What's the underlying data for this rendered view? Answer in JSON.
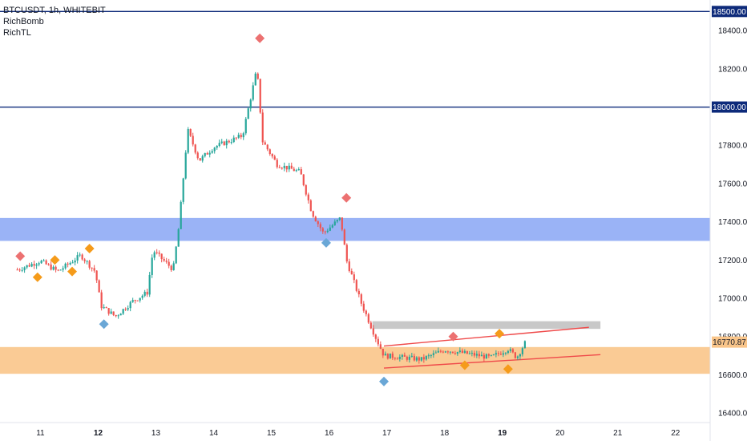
{
  "chart_data": {
    "type": "candlestick",
    "title": "BTCUSDT, 1h, WHITEBIT",
    "indicators": [
      "RichBomb",
      "RichTL"
    ],
    "x_axis": {
      "labels": [
        "11",
        "12",
        "13",
        "14",
        "15",
        "16",
        "17",
        "18",
        "19",
        "20",
        "21",
        "22"
      ],
      "bold_labels": [
        "12",
        "19"
      ]
    },
    "y_axis": {
      "range": [
        16350,
        18560
      ],
      "ticks": [
        "18400.00",
        "18200.00",
        "18000.00",
        "17800.00",
        "17600.00",
        "17400.00",
        "17200.00",
        "17000.00",
        "16800.00",
        "16600.00",
        "16400.00"
      ],
      "tick_values": [
        18400,
        18200,
        18000,
        17800,
        17600,
        17400,
        17200,
        17000,
        16800,
        16600,
        16400
      ]
    },
    "current_price": {
      "label": "16770.87",
      "value": 16770.87
    },
    "horizontal_lines": [
      {
        "value": 18500,
        "label": "18500.00",
        "color": "#0d2a7a"
      },
      {
        "value": 18000,
        "label": "18000.00",
        "color": "#0d2a7a"
      }
    ],
    "zones": [
      {
        "from": 17300,
        "to": 17420,
        "color": "#8fabf5"
      },
      {
        "from": 16605,
        "to": 16745,
        "color": "#f9c58a"
      },
      {
        "from": 16840,
        "to": 16880,
        "color": "#c2c2c2"
      }
    ],
    "path": [
      {
        "t": 10.6,
        "p": 17150
      },
      {
        "t": 11.0,
        "p": 17195
      },
      {
        "t": 11.3,
        "p": 17140
      },
      {
        "t": 11.7,
        "p": 17225
      },
      {
        "t": 11.95,
        "p": 17140
      },
      {
        "t": 12.05,
        "p": 16960
      },
      {
        "t": 12.3,
        "p": 16905
      },
      {
        "t": 12.6,
        "p": 16985
      },
      {
        "t": 12.85,
        "p": 17030
      },
      {
        "t": 12.95,
        "p": 17250
      },
      {
        "t": 13.3,
        "p": 17150
      },
      {
        "t": 13.4,
        "p": 17380
      },
      {
        "t": 13.55,
        "p": 17880
      },
      {
        "t": 13.75,
        "p": 17720
      },
      {
        "t": 14.0,
        "p": 17790
      },
      {
        "t": 14.5,
        "p": 17850
      },
      {
        "t": 14.75,
        "p": 18200
      },
      {
        "t": 14.85,
        "p": 17820
      },
      {
        "t": 15.1,
        "p": 17700
      },
      {
        "t": 15.5,
        "p": 17660
      },
      {
        "t": 15.7,
        "p": 17450
      },
      {
        "t": 15.9,
        "p": 17340
      },
      {
        "t": 16.2,
        "p": 17420
      },
      {
        "t": 16.3,
        "p": 17200
      },
      {
        "t": 16.55,
        "p": 16980
      },
      {
        "t": 16.8,
        "p": 16800
      },
      {
        "t": 16.95,
        "p": 16700
      },
      {
        "t": 17.3,
        "p": 16690
      },
      {
        "t": 17.6,
        "p": 16680
      },
      {
        "t": 18.0,
        "p": 16730
      },
      {
        "t": 18.4,
        "p": 16710
      },
      {
        "t": 18.8,
        "p": 16690
      },
      {
        "t": 19.1,
        "p": 16735
      },
      {
        "t": 19.25,
        "p": 16690
      },
      {
        "t": 19.4,
        "p": 16770
      }
    ],
    "trendlines": [
      {
        "x1": 16.95,
        "y1": 16750,
        "x2": 20.5,
        "y2": 16848,
        "color": "#ef4a4a"
      },
      {
        "x1": 16.95,
        "y1": 16635,
        "x2": 20.7,
        "y2": 16705,
        "color": "#ef4a4a"
      }
    ],
    "markers": [
      {
        "t": 10.65,
        "p": 17220,
        "color": "#ec7171"
      },
      {
        "t": 10.95,
        "p": 17110,
        "color": "#f59b1a"
      },
      {
        "t": 11.25,
        "p": 17200,
        "color": "#f59b1a"
      },
      {
        "t": 11.55,
        "p": 17140,
        "color": "#f59b1a"
      },
      {
        "t": 11.85,
        "p": 17260,
        "color": "#f59b1a"
      },
      {
        "t": 12.1,
        "p": 16865,
        "color": "#6aa7d6"
      },
      {
        "t": 14.8,
        "p": 18360,
        "color": "#ec7171"
      },
      {
        "t": 15.95,
        "p": 17290,
        "color": "#6aa7d6"
      },
      {
        "t": 16.3,
        "p": 17525,
        "color": "#ec7171"
      },
      {
        "t": 16.95,
        "p": 16565,
        "color": "#6aa7d6"
      },
      {
        "t": 18.15,
        "p": 16800,
        "color": "#ec7171"
      },
      {
        "t": 18.35,
        "p": 16650,
        "color": "#f59b1a"
      },
      {
        "t": 18.95,
        "p": 16815,
        "color": "#f59b1a"
      },
      {
        "t": 19.1,
        "p": 16630,
        "color": "#f59b1a"
      }
    ],
    "colors": {
      "up": "#26a69a",
      "down": "#ef5350"
    }
  }
}
